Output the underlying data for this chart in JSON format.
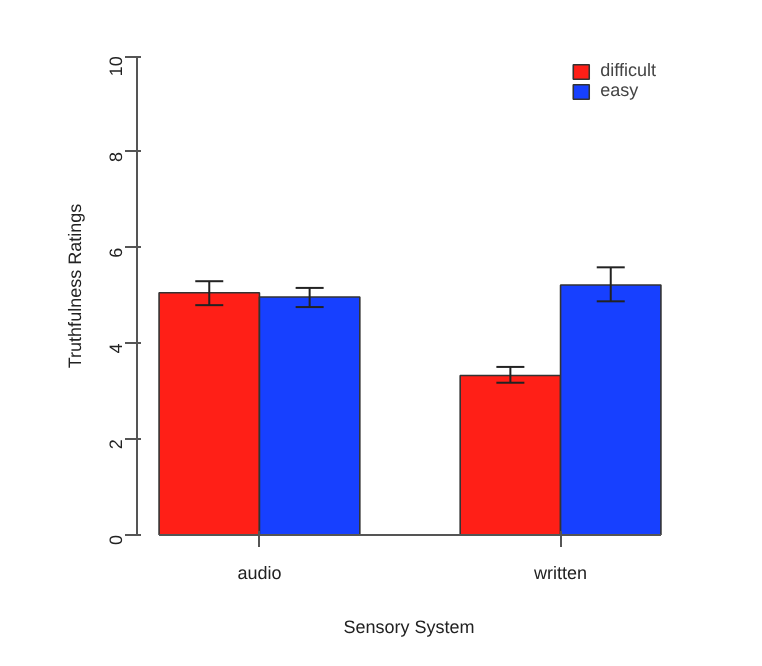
{
  "chart_data": {
    "type": "bar",
    "xlabel": "Sensory System",
    "ylabel": "Truthfulness Ratings",
    "categories": [
      "audio",
      "written"
    ],
    "series": [
      {
        "name": "difficult",
        "color": "#ff1f17",
        "values": [
          5.06,
          3.33
        ],
        "errors": [
          [
            4.8,
            5.3
          ],
          [
            3.18,
            3.51
          ]
        ]
      },
      {
        "name": "easy",
        "color": "#1740ff",
        "values": [
          4.97,
          5.22
        ],
        "errors": [
          [
            4.76,
            5.16
          ],
          [
            4.88,
            5.59
          ]
        ]
      }
    ],
    "ylim": [
      0,
      10
    ],
    "yticks": [
      0,
      2,
      4,
      6,
      8,
      10
    ],
    "legend": "top right",
    "grid": false
  }
}
